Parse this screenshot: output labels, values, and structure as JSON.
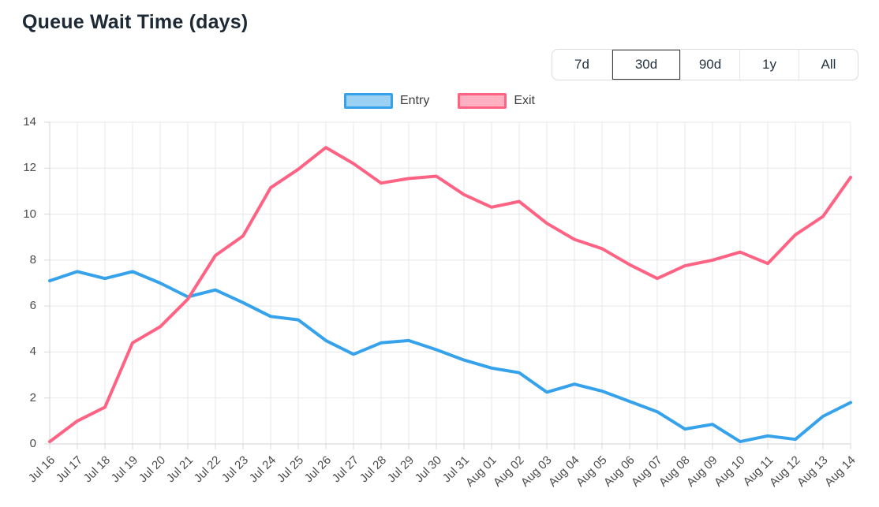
{
  "page": {
    "title": "Queue Wait Time (days)"
  },
  "controls": {
    "range_buttons": [
      "7d",
      "30d",
      "90d",
      "1y",
      "All"
    ],
    "selected_range": "30d"
  },
  "chart_data": {
    "type": "line",
    "title": "Queue Wait Time (days)",
    "x": [
      "Jul 16",
      "Jul 17",
      "Jul 18",
      "Jul 19",
      "Jul 20",
      "Jul 21",
      "Jul 22",
      "Jul 23",
      "Jul 24",
      "Jul 25",
      "Jul 26",
      "Jul 27",
      "Jul 28",
      "Jul 29",
      "Jul 30",
      "Jul 31",
      "Aug 01",
      "Aug 02",
      "Aug 03",
      "Aug 04",
      "Aug 05",
      "Aug 06",
      "Aug 07",
      "Aug 08",
      "Aug 09",
      "Aug 10",
      "Aug 11",
      "Aug 12",
      "Aug 13",
      "Aug 14"
    ],
    "series": [
      {
        "name": "Entry",
        "color": "#36A2EB",
        "fill_color": "#9BD1F5",
        "values": [
          7.1,
          7.5,
          7.2,
          7.5,
          7.0,
          6.4,
          6.7,
          6.15,
          5.55,
          5.4,
          4.5,
          3.9,
          4.4,
          4.5,
          4.1,
          3.65,
          3.3,
          3.1,
          2.25,
          2.6,
          2.3,
          1.85,
          1.4,
          0.65,
          0.85,
          0.1,
          0.35,
          0.2,
          1.2,
          1.8
        ]
      },
      {
        "name": "Exit",
        "color": "#FF6384",
        "fill_color": "#FFB1C1",
        "values": [
          0.1,
          1.0,
          1.6,
          4.4,
          5.1,
          6.3,
          8.2,
          9.05,
          11.15,
          11.95,
          12.9,
          12.2,
          11.35,
          11.55,
          11.65,
          10.85,
          10.3,
          10.55,
          9.6,
          8.9,
          8.5,
          7.8,
          7.2,
          7.75,
          8.0,
          8.35,
          7.85,
          9.1,
          9.9,
          11.6
        ]
      }
    ],
    "ylim": [
      0,
      14
    ],
    "y_ticks": [
      0,
      2,
      4,
      6,
      8,
      10,
      12,
      14
    ],
    "grid": true,
    "legend_position": "top",
    "x_label_rotation_deg": -45
  }
}
